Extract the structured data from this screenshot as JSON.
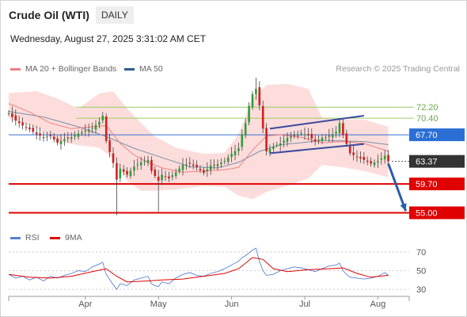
{
  "header": {
    "title": "Crude Oil (WTI)",
    "timeframe": "DAILY",
    "datetime": "Wednesday, August 27, 2025 3:31:02 AM CET",
    "credit": "Research © 2025 Trading Central"
  },
  "legend": {
    "ma20_label": "MA 20 + Bollinger Bands",
    "ma20_color": "#f08080",
    "ma50_label": "MA 50",
    "ma50_color": "#2e5c8a",
    "rsi_label": "RSI",
    "rsi_color": "#5b7fd6",
    "rsi9_label": "9MA",
    "rsi9_color": "#e00000"
  },
  "chart_data": [
    {
      "type": "candlestick",
      "ylim": [
        53,
        77
      ],
      "x_ticks": [
        "Apr",
        "May",
        "Jun",
        "Jul",
        "Aug"
      ],
      "price_levels": [
        {
          "label": "72.20",
          "value": 72.2,
          "kind": "resistance",
          "color": "#7cb342"
        },
        {
          "label": "70.40",
          "value": 70.4,
          "kind": "resistance",
          "color": "#7cb342"
        },
        {
          "label": "67.70",
          "value": 67.7,
          "kind": "pivot",
          "color": "#2a6fd6"
        },
        {
          "label": "63.37",
          "value": 63.37,
          "kind": "last",
          "color": "#333333"
        },
        {
          "label": "59.70",
          "value": 59.7,
          "kind": "support",
          "color": "#e00000"
        },
        {
          "label": "55.00",
          "value": 55.0,
          "kind": "support",
          "color": "#e00000"
        }
      ],
      "close_path": [
        [
          0,
          71.2
        ],
        [
          2,
          70.0
        ],
        [
          4,
          69.2
        ],
        [
          6,
          68.6
        ],
        [
          8,
          67.8
        ],
        [
          10,
          67.3
        ],
        [
          12,
          67.5
        ],
        [
          14,
          66.4
        ],
        [
          16,
          67.0
        ],
        [
          18,
          67.3
        ],
        [
          20,
          67.9
        ],
        [
          22,
          68.3
        ],
        [
          24,
          68.8
        ],
        [
          26,
          69.8
        ],
        [
          27,
          70.8
        ],
        [
          28,
          66.7
        ],
        [
          30,
          63.1
        ],
        [
          31,
          60.4
        ],
        [
          32,
          62.2
        ],
        [
          34,
          61.2
        ],
        [
          36,
          62.5
        ],
        [
          38,
          63.2
        ],
        [
          40,
          63.6
        ],
        [
          41,
          61.8
        ],
        [
          42,
          61.0
        ],
        [
          43,
          60.2
        ],
        [
          44,
          61.2
        ],
        [
          46,
          60.6
        ],
        [
          48,
          61.6
        ],
        [
          50,
          62.8
        ],
        [
          52,
          63.0
        ],
        [
          54,
          62.4
        ],
        [
          56,
          61.5
        ],
        [
          58,
          62.7
        ],
        [
          60,
          62.9
        ],
        [
          62,
          63.4
        ],
        [
          64,
          64.6
        ],
        [
          66,
          65.5
        ],
        [
          67,
          67.8
        ],
        [
          68,
          69.6
        ],
        [
          69,
          72.4
        ],
        [
          70,
          74.3
        ],
        [
          71,
          75.2
        ],
        [
          72,
          72.5
        ],
        [
          73,
          68.7
        ],
        [
          74,
          65.0
        ],
        [
          76,
          65.8
        ],
        [
          78,
          66.3
        ],
        [
          80,
          67.2
        ],
        [
          82,
          67.6
        ],
        [
          84,
          68.0
        ],
        [
          86,
          67.6
        ],
        [
          88,
          66.6
        ],
        [
          90,
          67.2
        ],
        [
          92,
          67.4
        ],
        [
          94,
          68.2
        ],
        [
          95,
          69.6
        ],
        [
          96,
          67.7
        ],
        [
          97,
          66.2
        ],
        [
          98,
          64.7
        ],
        [
          100,
          64.1
        ],
        [
          102,
          63.6
        ],
        [
          104,
          63.0
        ],
        [
          106,
          63.4
        ],
        [
          108,
          64.3
        ],
        [
          109,
          63.37
        ]
      ],
      "ma20": [
        [
          0,
          72.8
        ],
        [
          6,
          71.4
        ],
        [
          12,
          69.6
        ],
        [
          18,
          68.7
        ],
        [
          24,
          69.0
        ],
        [
          28,
          69.2
        ],
        [
          32,
          66.3
        ],
        [
          36,
          64.4
        ],
        [
          40,
          63.2
        ],
        [
          44,
          62.3
        ],
        [
          50,
          61.6
        ],
        [
          56,
          61.8
        ],
        [
          62,
          62.0
        ],
        [
          66,
          62.4
        ],
        [
          70,
          65.2
        ],
        [
          74,
          67.5
        ],
        [
          78,
          67.7
        ],
        [
          84,
          67.3
        ],
        [
          90,
          66.4
        ],
        [
          96,
          66.6
        ],
        [
          102,
          66.3
        ],
        [
          109,
          65.0
        ]
      ],
      "bollinger_upper": [
        [
          0,
          74.5
        ],
        [
          8,
          74.8
        ],
        [
          14,
          73.6
        ],
        [
          20,
          72.0
        ],
        [
          26,
          74.4
        ],
        [
          30,
          74.8
        ],
        [
          34,
          72.0
        ],
        [
          38,
          69.6
        ],
        [
          42,
          67.4
        ],
        [
          48,
          65.6
        ],
        [
          56,
          64.6
        ],
        [
          62,
          64.8
        ],
        [
          66,
          67.8
        ],
        [
          70,
          73.6
        ],
        [
          74,
          75.8
        ],
        [
          80,
          76.0
        ],
        [
          86,
          75.2
        ],
        [
          90,
          70.4
        ],
        [
          96,
          70.2
        ],
        [
          102,
          70.2
        ],
        [
          109,
          69.0
        ]
      ],
      "bollinger_lower": [
        [
          0,
          70.4
        ],
        [
          8,
          68.8
        ],
        [
          14,
          66.6
        ],
        [
          20,
          66.0
        ],
        [
          26,
          65.6
        ],
        [
          30,
          63.8
        ],
        [
          34,
          60.2
        ],
        [
          38,
          58.6
        ],
        [
          42,
          58.6
        ],
        [
          48,
          58.8
        ],
        [
          56,
          59.4
        ],
        [
          62,
          59.2
        ],
        [
          66,
          57.8
        ],
        [
          70,
          57.2
        ],
        [
          74,
          58.4
        ],
        [
          80,
          59.4
        ],
        [
          86,
          60.6
        ],
        [
          90,
          62.8
        ],
        [
          96,
          62.4
        ],
        [
          102,
          61.8
        ],
        [
          109,
          60.8
        ]
      ],
      "ma50": [
        [
          0,
          71.5
        ],
        [
          10,
          70.6
        ],
        [
          20,
          69.0
        ],
        [
          28,
          67.4
        ],
        [
          36,
          65.5
        ],
        [
          44,
          64.0
        ],
        [
          52,
          62.5
        ],
        [
          60,
          62.3
        ],
        [
          66,
          63.2
        ],
        [
          72,
          65.0
        ],
        [
          78,
          66.1
        ],
        [
          84,
          66.4
        ],
        [
          90,
          66.8
        ],
        [
          96,
          66.7
        ],
        [
          102,
          66.6
        ],
        [
          109,
          66.1
        ]
      ],
      "trendlines": [
        {
          "x1": 75,
          "y1": 68.7,
          "x2": 102,
          "y2": 70.8
        },
        {
          "x1": 75,
          "y1": 64.7,
          "x2": 102,
          "y2": 66.2
        }
      ],
      "forecast_arrow": {
        "x1": 109,
        "y1": 63.0,
        "x2": 114,
        "y2": 55.3
      }
    },
    {
      "type": "line",
      "title": "RSI",
      "ylim": [
        25,
        75
      ],
      "y_ticks": [
        70,
        50,
        30
      ],
      "series": [
        {
          "name": "RSI",
          "points": [
            [
              0,
              46
            ],
            [
              2,
              42
            ],
            [
              4,
              44
            ],
            [
              6,
              40
            ],
            [
              8,
              43
            ],
            [
              10,
              39
            ],
            [
              12,
              44
            ],
            [
              14,
              42
            ],
            [
              16,
              45
            ],
            [
              18,
              47
            ],
            [
              20,
              50
            ],
            [
              22,
              49
            ],
            [
              24,
              54
            ],
            [
              26,
              57
            ],
            [
              27,
              59
            ],
            [
              28,
              46
            ],
            [
              30,
              35
            ],
            [
              31,
              30
            ],
            [
              32,
              36
            ],
            [
              34,
              34
            ],
            [
              36,
              40
            ],
            [
              38,
              42
            ],
            [
              40,
              44
            ],
            [
              41,
              36
            ],
            [
              42,
              34
            ],
            [
              43,
              33
            ],
            [
              44,
              38
            ],
            [
              46,
              36
            ],
            [
              48,
              42
            ],
            [
              50,
              46
            ],
            [
              52,
              48
            ],
            [
              54,
              45
            ],
            [
              56,
              44
            ],
            [
              58,
              47
            ],
            [
              60,
              49
            ],
            [
              62,
              52
            ],
            [
              64,
              56
            ],
            [
              66,
              60
            ],
            [
              67,
              64
            ],
            [
              68,
              66
            ],
            [
              69,
              69
            ],
            [
              70,
              72
            ],
            [
              71,
              74
            ],
            [
              72,
              60
            ],
            [
              73,
              50
            ],
            [
              74,
              45
            ],
            [
              76,
              46
            ],
            [
              78,
              50
            ],
            [
              80,
              52
            ],
            [
              82,
              54
            ],
            [
              84,
              53
            ],
            [
              86,
              51
            ],
            [
              88,
              49
            ],
            [
              90,
              52
            ],
            [
              92,
              55
            ],
            [
              94,
              56
            ],
            [
              95,
              58
            ],
            [
              96,
              50
            ],
            [
              97,
              46
            ],
            [
              98,
              43
            ],
            [
              100,
              42
            ],
            [
              102,
              41
            ],
            [
              104,
              42
            ],
            [
              106,
              44
            ],
            [
              108,
              48
            ],
            [
              109,
              45
            ]
          ]
        },
        {
          "name": "9MA",
          "points": [
            [
              0,
              46
            ],
            [
              6,
              43
            ],
            [
              12,
              42
            ],
            [
              18,
              44
            ],
            [
              24,
              49
            ],
            [
              28,
              52
            ],
            [
              31,
              44
            ],
            [
              34,
              38
            ],
            [
              40,
              39
            ],
            [
              44,
              40
            ],
            [
              50,
              41
            ],
            [
              56,
              44
            ],
            [
              62,
              47
            ],
            [
              66,
              52
            ],
            [
              70,
              64
            ],
            [
              73,
              62
            ],
            [
              76,
              52
            ],
            [
              80,
              49
            ],
            [
              86,
              51
            ],
            [
              92,
              52
            ],
            [
              96,
              53
            ],
            [
              100,
              47
            ],
            [
              104,
              43
            ],
            [
              109,
              45
            ]
          ]
        }
      ]
    }
  ]
}
